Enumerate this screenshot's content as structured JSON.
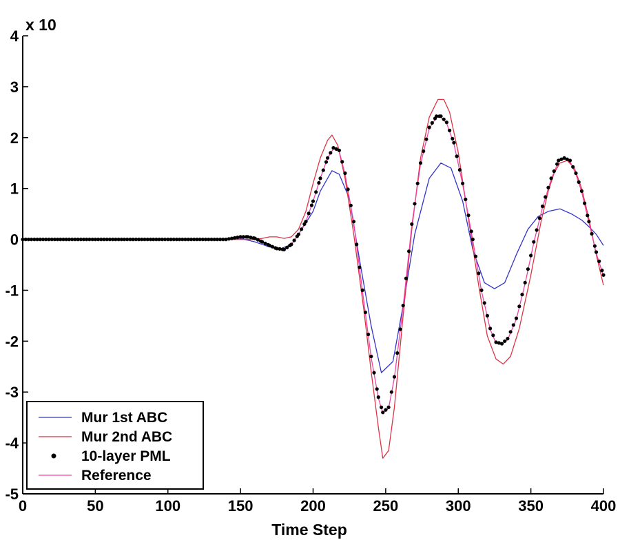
{
  "chart_data": {
    "type": "line",
    "title": "",
    "xlabel": "Time Step",
    "ylabel": "",
    "y_multiplier_label": "x 10",
    "xlim": [
      0,
      400
    ],
    "ylim": [
      -5,
      4
    ],
    "x_ticks": [
      0,
      50,
      100,
      150,
      200,
      250,
      300,
      350,
      400
    ],
    "y_ticks": [
      4,
      3,
      2,
      1,
      0,
      -1,
      -2,
      -3,
      -4,
      -5
    ],
    "x_tick_labels": [
      "0",
      "50",
      "100",
      "150",
      "200",
      "250",
      "300",
      "350",
      "400"
    ],
    "y_tick_labels": [
      "4",
      "3",
      "2",
      "1",
      "0",
      "-1",
      "-2",
      "-3",
      "-4",
      "-5"
    ],
    "grid": false,
    "legend_position": "bottom-left",
    "series": [
      {
        "name": "Mur 1st ABC",
        "style": "line",
        "color": "#3333cc",
        "x": [
          0,
          140,
          150,
          160,
          170,
          178,
          185,
          190,
          200,
          205,
          213,
          218,
          225,
          232,
          240,
          247,
          255,
          262,
          270,
          280,
          288,
          295,
          303,
          310,
          318,
          325,
          332,
          340,
          348,
          355,
          362,
          370,
          378,
          385,
          390,
          395,
          400
        ],
        "y": [
          0,
          0,
          0.02,
          -0.05,
          -0.15,
          -0.18,
          -0.1,
          0.1,
          0.55,
          0.95,
          1.35,
          1.28,
          0.8,
          -0.4,
          -1.7,
          -2.62,
          -2.4,
          -1.3,
          0.1,
          1.2,
          1.5,
          1.4,
          0.75,
          -0.2,
          -0.85,
          -0.97,
          -0.85,
          -0.3,
          0.2,
          0.45,
          0.55,
          0.6,
          0.5,
          0.38,
          0.25,
          0.1,
          -0.12
        ]
      },
      {
        "name": "Mur 2nd ABC",
        "style": "line",
        "color": "#dd3344",
        "x": [
          0,
          140,
          150,
          160,
          165,
          170,
          175,
          180,
          185,
          190,
          195,
          200,
          205,
          210,
          213,
          217,
          222,
          228,
          235,
          240,
          245,
          248,
          252,
          256,
          262,
          268,
          274,
          280,
          286,
          290,
          294,
          300,
          307,
          314,
          320,
          326,
          331,
          336,
          342,
          350,
          357,
          362,
          366,
          370,
          375,
          380,
          385,
          390,
          395,
          400
        ],
        "y": [
          0,
          0,
          0,
          0,
          0.02,
          0.05,
          0.05,
          0.02,
          0.05,
          0.2,
          0.55,
          1.1,
          1.6,
          1.95,
          2.05,
          1.85,
          1.2,
          0.1,
          -1.4,
          -2.6,
          -3.7,
          -4.3,
          -4.15,
          -3.3,
          -1.5,
          0.2,
          1.6,
          2.4,
          2.75,
          2.75,
          2.5,
          1.7,
          0.4,
          -0.9,
          -1.9,
          -2.35,
          -2.45,
          -2.3,
          -1.75,
          -0.7,
          0.35,
          0.95,
          1.3,
          1.5,
          1.55,
          1.4,
          1.0,
          0.4,
          -0.3,
          -0.9
        ]
      },
      {
        "name": "10-layer PML",
        "style": "dots",
        "color": "#000000",
        "x": [
          0,
          140,
          150,
          155,
          160,
          165,
          170,
          175,
          180,
          185,
          190,
          195,
          200,
          205,
          210,
          214,
          218,
          222,
          228,
          234,
          240,
          245,
          248,
          252,
          256,
          262,
          268,
          274,
          280,
          285,
          288,
          292,
          297,
          303,
          310,
          316,
          322,
          326,
          330,
          334,
          340,
          346,
          352,
          358,
          364,
          369,
          373,
          377,
          381,
          385,
          390,
          395,
          400
        ],
        "y": [
          0,
          0,
          0.05,
          0.05,
          0.02,
          -0.05,
          -0.12,
          -0.18,
          -0.2,
          -0.1,
          0.1,
          0.35,
          0.75,
          1.2,
          1.6,
          1.8,
          1.75,
          1.3,
          0.35,
          -1.0,
          -2.3,
          -3.1,
          -3.4,
          -3.3,
          -2.7,
          -1.3,
          0.3,
          1.5,
          2.2,
          2.42,
          2.42,
          2.3,
          1.9,
          1.1,
          0.0,
          -1.0,
          -1.75,
          -2.02,
          -2.05,
          -1.95,
          -1.55,
          -0.85,
          -0.05,
          0.65,
          1.2,
          1.55,
          1.6,
          1.55,
          1.3,
          0.95,
          0.35,
          -0.25,
          -0.7
        ]
      },
      {
        "name": "Reference",
        "style": "line",
        "color": "#ee44aa",
        "x": [
          0,
          140,
          150,
          155,
          160,
          165,
          170,
          175,
          180,
          185,
          190,
          195,
          200,
          205,
          210,
          214,
          218,
          222,
          228,
          234,
          240,
          245,
          248,
          252,
          256,
          262,
          268,
          274,
          280,
          285,
          288,
          292,
          297,
          303,
          310,
          316,
          322,
          326,
          330,
          334,
          340,
          346,
          352,
          358,
          364,
          369,
          373,
          377,
          381,
          385,
          390,
          395,
          400
        ],
        "y": [
          0,
          0,
          0.02,
          0.03,
          0.01,
          -0.05,
          -0.12,
          -0.18,
          -0.2,
          -0.1,
          0.1,
          0.35,
          0.75,
          1.2,
          1.6,
          1.78,
          1.73,
          1.28,
          0.33,
          -1.02,
          -2.32,
          -3.12,
          -3.42,
          -3.32,
          -2.72,
          -1.32,
          0.28,
          1.48,
          2.18,
          2.4,
          2.4,
          2.28,
          1.88,
          1.08,
          -0.02,
          -1.02,
          -1.77,
          -2.04,
          -2.07,
          -1.97,
          -1.57,
          -0.87,
          -0.07,
          0.63,
          1.18,
          1.53,
          1.58,
          1.53,
          1.28,
          0.93,
          0.33,
          -0.27,
          -0.72
        ]
      }
    ]
  }
}
